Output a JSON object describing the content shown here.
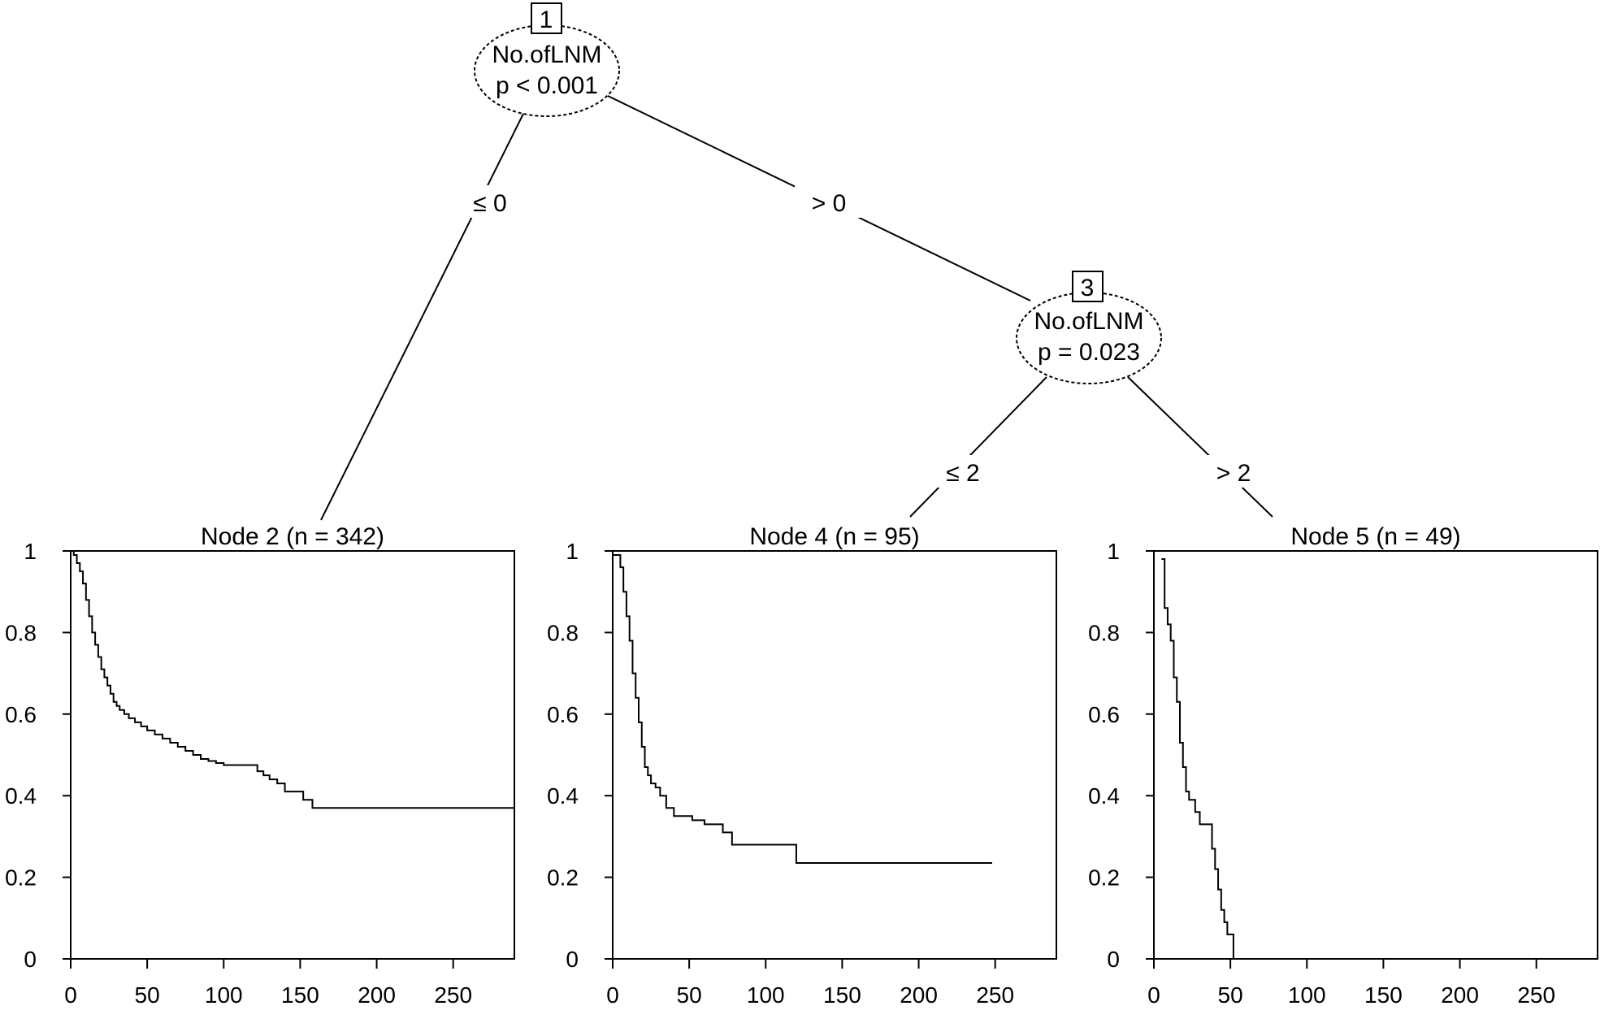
{
  "chart_data": [
    {
      "type": "diagram-tree",
      "nodes": [
        {
          "id": "1",
          "variable": "No.ofLNM",
          "p_value": "p < 0.001"
        },
        {
          "id": "3",
          "variable": "No.ofLNM",
          "p_value": "p = 0.023"
        }
      ],
      "edges": [
        {
          "from": "1",
          "to": "2",
          "label": "≤ 0"
        },
        {
          "from": "1",
          "to": "3",
          "label": "> 0"
        },
        {
          "from": "3",
          "to": "4",
          "label": "≤ 2"
        },
        {
          "from": "3",
          "to": "5",
          "label": "> 2"
        }
      ]
    },
    {
      "type": "line",
      "title": "Node 2 (n = 342)",
      "xlim": [
        0,
        290
      ],
      "ylim": [
        0,
        1
      ],
      "x_ticks": [
        0,
        50,
        100,
        150,
        200,
        250
      ],
      "y_ticks": [
        0,
        0.2,
        0.4,
        0.6,
        0.8,
        1
      ],
      "y_tick_labels": [
        "0",
        "0.2",
        "0.4",
        "0.6",
        "0.8",
        "1"
      ],
      "series": [
        {
          "x": [
            0,
            2,
            4,
            6,
            8,
            10,
            12,
            14,
            16,
            18,
            20,
            22,
            24,
            26,
            28,
            30,
            32,
            35,
            38,
            42,
            46,
            50,
            55,
            60,
            65,
            70,
            75,
            80,
            85,
            90,
            95,
            100,
            110,
            122,
            126,
            130,
            135,
            140,
            152,
            158,
            290
          ],
          "y": [
            1.0,
            0.99,
            0.97,
            0.95,
            0.92,
            0.88,
            0.84,
            0.8,
            0.77,
            0.74,
            0.71,
            0.69,
            0.67,
            0.65,
            0.63,
            0.62,
            0.61,
            0.6,
            0.59,
            0.58,
            0.57,
            0.56,
            0.55,
            0.54,
            0.53,
            0.52,
            0.51,
            0.5,
            0.49,
            0.485,
            0.48,
            0.475,
            0.475,
            0.46,
            0.45,
            0.44,
            0.43,
            0.41,
            0.39,
            0.37,
            0.37
          ]
        }
      ]
    },
    {
      "type": "line",
      "title": "Node 4 (n = 95)",
      "xlim": [
        0,
        290
      ],
      "ylim": [
        0,
        1
      ],
      "x_ticks": [
        0,
        50,
        100,
        150,
        200,
        250
      ],
      "y_ticks": [
        0,
        0.2,
        0.4,
        0.6,
        0.8,
        1
      ],
      "y_tick_labels": [
        "0",
        "0.2",
        "0.4",
        "0.6",
        "0.8",
        "1"
      ],
      "series": [
        {
          "x": [
            0,
            5,
            7,
            9,
            11,
            13,
            15,
            17,
            19,
            21,
            23,
            25,
            28,
            31,
            35,
            40,
            45,
            52,
            60,
            65,
            72,
            78,
            90,
            100,
            120,
            248
          ],
          "y": [
            0.99,
            0.96,
            0.9,
            0.84,
            0.78,
            0.7,
            0.64,
            0.58,
            0.52,
            0.47,
            0.45,
            0.43,
            0.42,
            0.4,
            0.37,
            0.35,
            0.35,
            0.34,
            0.33,
            0.33,
            0.31,
            0.28,
            0.28,
            0.28,
            0.235,
            0.235
          ]
        }
      ]
    },
    {
      "type": "line",
      "title": "Node 5 (n = 49)",
      "xlim": [
        0,
        290
      ],
      "ylim": [
        0,
        1
      ],
      "x_ticks": [
        0,
        50,
        100,
        150,
        200,
        250
      ],
      "y_ticks": [
        0,
        0.2,
        0.4,
        0.6,
        0.8,
        1
      ],
      "y_tick_labels": [
        "0",
        "0.2",
        "0.4",
        "0.6",
        "0.8",
        "1"
      ],
      "series": [
        {
          "x": [
            5,
            7,
            9,
            11,
            13,
            15,
            17,
            19,
            21,
            23,
            25,
            27,
            30,
            34,
            38,
            40,
            42,
            44,
            46,
            48,
            51,
            52
          ],
          "y": [
            0.98,
            0.86,
            0.82,
            0.78,
            0.69,
            0.63,
            0.53,
            0.47,
            0.41,
            0.39,
            0.39,
            0.36,
            0.33,
            0.33,
            0.27,
            0.22,
            0.17,
            0.12,
            0.09,
            0.06,
            0.06,
            0.0
          ]
        }
      ]
    }
  ]
}
